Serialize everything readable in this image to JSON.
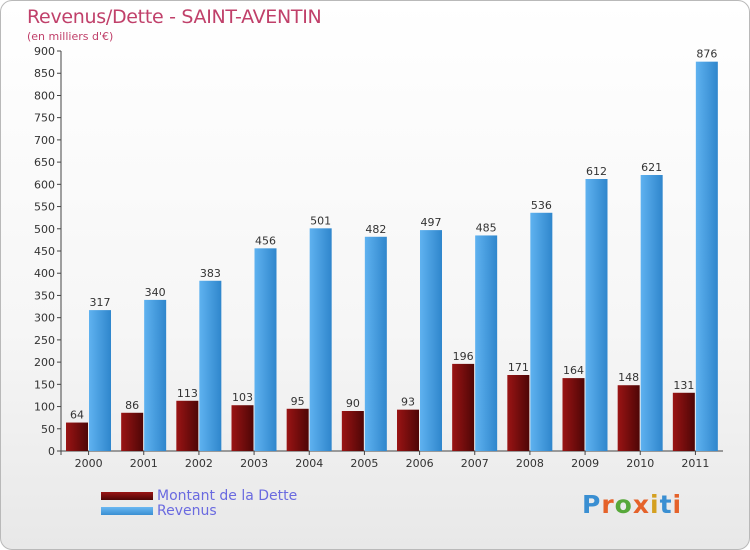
{
  "title": "Revenus/Dette - SAINT-AVENTIN",
  "subtitle": "(en milliers d'€)",
  "logo_text": "Proxiti",
  "colors": {
    "dette": "#7a0c0c",
    "revenus": "#4aa3e8",
    "title": "#c0406a",
    "legend_text": "#6a6ae0"
  },
  "chart_data": {
    "type": "bar",
    "title": "Revenus/Dette - SAINT-AVENTIN",
    "ylabel": "(en milliers d'€)",
    "xlabel": "",
    "ylim": [
      0,
      900
    ],
    "yticks": [
      0,
      50,
      100,
      150,
      200,
      250,
      300,
      350,
      400,
      450,
      500,
      550,
      600,
      650,
      700,
      750,
      800,
      850,
      900
    ],
    "categories": [
      "2000",
      "2001",
      "2002",
      "2003",
      "2004",
      "2005",
      "2006",
      "2007",
      "2008",
      "2009",
      "2010",
      "2011"
    ],
    "series": [
      {
        "name": "Montant de la Dette",
        "values": [
          64,
          86,
          113,
          103,
          95,
          90,
          93,
          196,
          171,
          164,
          148,
          131
        ]
      },
      {
        "name": "Revenus",
        "values": [
          317,
          340,
          383,
          456,
          501,
          482,
          497,
          485,
          536,
          612,
          621,
          876
        ]
      }
    ],
    "legend_position": "bottom-left"
  }
}
